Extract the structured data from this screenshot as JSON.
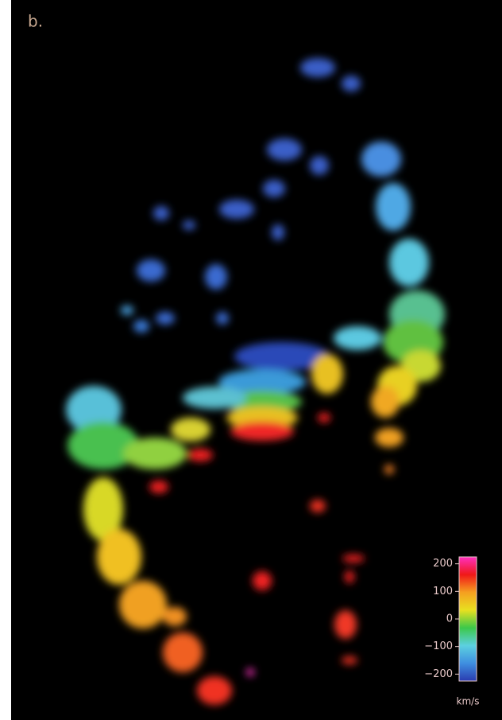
{
  "panel_label": "b.",
  "colorbar": {
    "lim": [
      -225,
      225
    ],
    "ticks": [
      200,
      100,
      0,
      {
        "value": -100,
        "label": "−100"
      },
      {
        "value": -200,
        "label": "−200"
      }
    ],
    "unit": "km/s",
    "colors": [
      "#2a3bb0",
      "#3f8fe0",
      "#5cd0e0",
      "#3cc84a",
      "#e8e020",
      "#f5a020",
      "#f01818",
      "#ff30c0"
    ]
  }
}
